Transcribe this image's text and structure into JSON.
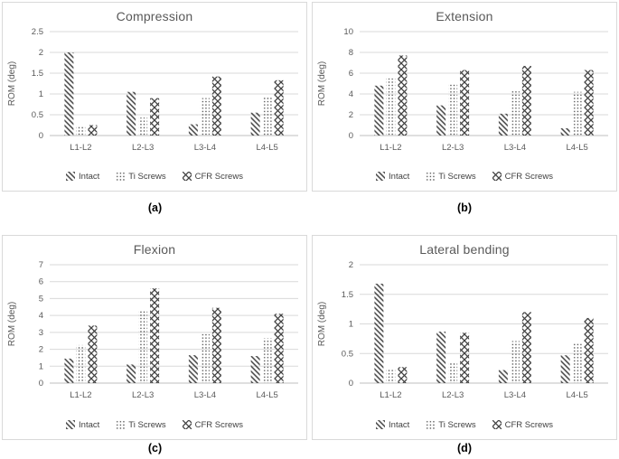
{
  "figure": {
    "ylabel": "ROM (deg)",
    "categories": [
      "L1-L2",
      "L2-L3",
      "L3-L4",
      "L4-L5"
    ],
    "legend": [
      {
        "name": "Intact",
        "pattern": "diagonal-stripes"
      },
      {
        "name": "Ti Screws",
        "pattern": "dots"
      },
      {
        "name": "CFR Screws",
        "pattern": "diamond-crosshatch"
      }
    ],
    "colors": {
      "pattern_ink": "#404040",
      "gridline": "#d9d9d9",
      "axis_line": "#bfbfbf",
      "text": "#595959",
      "panel_border": "#d9d9d9"
    }
  },
  "chart_data": [
    {
      "id": "a",
      "type": "bar",
      "title": "Compression",
      "caption": "(a)",
      "xlabel": "",
      "ylabel": "ROM (deg)",
      "ylim": [
        0,
        2.5
      ],
      "yticks": [
        "0",
        "0.5",
        "1",
        "1.5",
        "2",
        "2.5"
      ],
      "grid": true,
      "legend_position": "bottom",
      "categories": [
        "L1-L2",
        "L2-L3",
        "L3-L4",
        "L4-L5"
      ],
      "series": [
        {
          "name": "Intact",
          "values": [
            2.0,
            1.05,
            0.27,
            0.55
          ]
        },
        {
          "name": "Ti Screws",
          "values": [
            0.22,
            0.43,
            0.9,
            0.93
          ]
        },
        {
          "name": "CFR Screws",
          "values": [
            0.25,
            0.9,
            1.42,
            1.33
          ]
        }
      ]
    },
    {
      "id": "b",
      "type": "bar",
      "title": "Extension",
      "caption": "(b)",
      "xlabel": "",
      "ylabel": "ROM (deg)",
      "ylim": [
        0,
        10
      ],
      "yticks": [
        "0",
        "2",
        "4",
        "6",
        "8",
        "10"
      ],
      "grid": true,
      "legend_position": "bottom",
      "categories": [
        "L1-L2",
        "L2-L3",
        "L3-L4",
        "L4-L5"
      ],
      "series": [
        {
          "name": "Intact",
          "values": [
            4.8,
            2.9,
            2.1,
            0.7
          ]
        },
        {
          "name": "Ti Screws",
          "values": [
            5.5,
            5.0,
            4.4,
            4.2
          ]
        },
        {
          "name": "CFR Screws",
          "values": [
            7.7,
            6.3,
            6.7,
            6.3
          ]
        }
      ]
    },
    {
      "id": "c",
      "type": "bar",
      "title": "Flexion",
      "caption": "(c)",
      "xlabel": "",
      "ylabel": "ROM (deg)",
      "ylim": [
        0,
        7
      ],
      "yticks": [
        "0",
        "1",
        "2",
        "3",
        "4",
        "5",
        "6",
        "7"
      ],
      "grid": true,
      "legend_position": "bottom",
      "categories": [
        "L1-L2",
        "L2-L3",
        "L3-L4",
        "L4-L5"
      ],
      "series": [
        {
          "name": "Intact",
          "values": [
            1.45,
            1.1,
            1.65,
            1.6
          ]
        },
        {
          "name": "Ti Screws",
          "values": [
            2.25,
            4.3,
            2.9,
            2.65
          ]
        },
        {
          "name": "CFR Screws",
          "values": [
            3.4,
            5.6,
            4.45,
            4.1
          ]
        }
      ]
    },
    {
      "id": "d",
      "type": "bar",
      "title": "Lateral bending",
      "caption": "(d)",
      "xlabel": "",
      "ylabel": "ROM (deg)",
      "ylim": [
        0,
        2
      ],
      "yticks": [
        "0",
        "0.5",
        "1",
        "1.5",
        "2"
      ],
      "grid": true,
      "legend_position": "bottom",
      "categories": [
        "L1-L2",
        "L2-L3",
        "L3-L4",
        "L4-L5"
      ],
      "series": [
        {
          "name": "Intact",
          "values": [
            1.68,
            0.87,
            0.22,
            0.47
          ]
        },
        {
          "name": "Ti Screws",
          "values": [
            0.23,
            0.34,
            0.71,
            0.68
          ]
        },
        {
          "name": "CFR Screws",
          "values": [
            0.27,
            0.85,
            1.2,
            1.1
          ]
        }
      ]
    }
  ]
}
